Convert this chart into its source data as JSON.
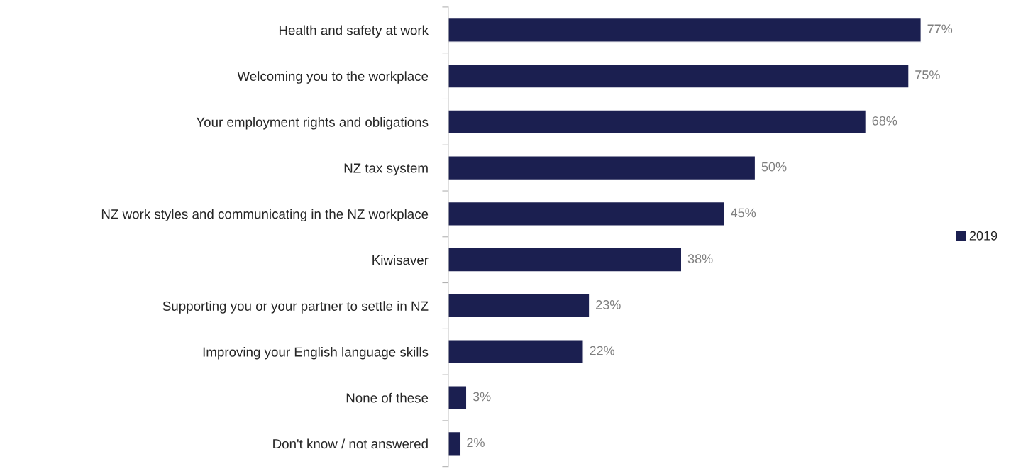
{
  "chart_data": {
    "type": "bar",
    "orientation": "horizontal",
    "categories": [
      "Health and safety at work",
      "Welcoming you to the workplace",
      "Your employment rights and obligations",
      "NZ tax system",
      "NZ work styles and communicating in the NZ workplace",
      "Kiwisaver",
      "Supporting you or your partner to settle in NZ",
      "Improving your English language skills",
      "None of these",
      "Don't know / not answered"
    ],
    "series": [
      {
        "name": "2019",
        "color": "#1b1f50",
        "values": [
          77,
          75,
          68,
          50,
          45,
          38,
          23,
          22,
          3,
          2
        ],
        "value_labels": [
          "77%",
          "75%",
          "68%",
          "50%",
          "45%",
          "38%",
          "23%",
          "22%",
          "3%",
          "2%"
        ]
      }
    ],
    "legend": "right",
    "grid": false
  }
}
